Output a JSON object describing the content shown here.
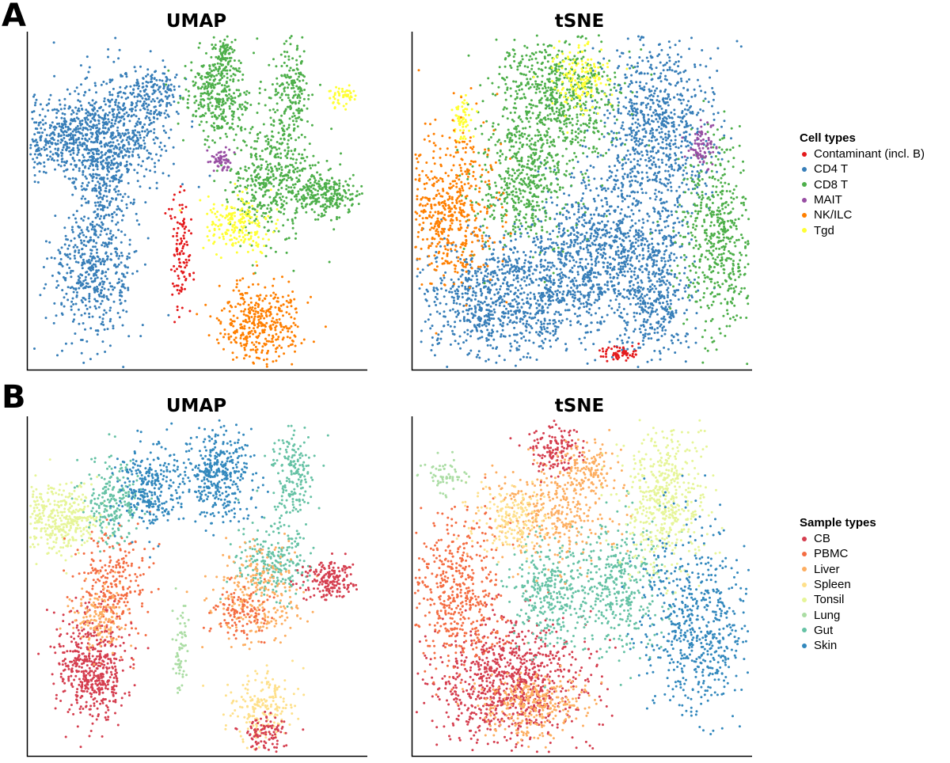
{
  "figure": {
    "panel_a_letter": "A",
    "panel_b_letter": "B"
  },
  "chart_data": [
    {
      "type": "scatter",
      "panel": "A",
      "title": "UMAP",
      "xlabel": "",
      "ylabel": "",
      "color_by": "Cell types",
      "grid": false,
      "clusters": [
        {
          "label": "CD4 T",
          "cx": 0.13,
          "cy": 0.69,
          "sx": 0.09,
          "sy": 0.06,
          "density": 560
        },
        {
          "label": "CD4 T",
          "cx": 0.3,
          "cy": 0.73,
          "sx": 0.07,
          "sy": 0.09,
          "density": 420
        },
        {
          "label": "CD4 T",
          "cx": 0.23,
          "cy": 0.58,
          "sx": 0.04,
          "sy": 0.08,
          "density": 240
        },
        {
          "label": "CD4 T",
          "cx": 0.2,
          "cy": 0.3,
          "sx": 0.06,
          "sy": 0.1,
          "density": 520
        },
        {
          "label": "CD4 T",
          "cx": 0.39,
          "cy": 0.83,
          "sx": 0.03,
          "sy": 0.03,
          "density": 90
        },
        {
          "label": "CD8 T",
          "cx": 0.56,
          "cy": 0.82,
          "sx": 0.05,
          "sy": 0.07,
          "density": 360
        },
        {
          "label": "CD8 T",
          "cx": 0.58,
          "cy": 0.93,
          "sx": 0.015,
          "sy": 0.03,
          "density": 70
        },
        {
          "label": "CD8 T",
          "cx": 0.78,
          "cy": 0.82,
          "sx": 0.03,
          "sy": 0.07,
          "density": 180
        },
        {
          "label": "CD8 T",
          "cx": 0.72,
          "cy": 0.57,
          "sx": 0.07,
          "sy": 0.08,
          "density": 480
        },
        {
          "label": "CD8 T",
          "cx": 0.88,
          "cy": 0.52,
          "sx": 0.05,
          "sy": 0.03,
          "density": 240
        },
        {
          "label": "MAIT",
          "cx": 0.57,
          "cy": 0.62,
          "sx": 0.02,
          "sy": 0.015,
          "density": 60
        },
        {
          "label": "Tgd",
          "cx": 0.62,
          "cy": 0.43,
          "sx": 0.05,
          "sy": 0.04,
          "density": 200
        },
        {
          "label": "Tgd",
          "cx": 0.93,
          "cy": 0.81,
          "sx": 0.02,
          "sy": 0.015,
          "density": 50
        },
        {
          "label": "NK/ILC",
          "cx": 0.68,
          "cy": 0.14,
          "sx": 0.06,
          "sy": 0.06,
          "density": 380
        },
        {
          "label": "Contaminant (incl. B)",
          "cx": 0.45,
          "cy": 0.35,
          "sx": 0.015,
          "sy": 0.08,
          "density": 110
        }
      ]
    },
    {
      "type": "scatter",
      "panel": "A",
      "title": "tSNE",
      "xlabel": "",
      "ylabel": "",
      "color_by": "Cell types",
      "grid": false,
      "clusters": [
        {
          "label": "CD4 T",
          "cx": 0.28,
          "cy": 0.22,
          "sx": 0.13,
          "sy": 0.09,
          "density": 1000
        },
        {
          "label": "CD4 T",
          "cx": 0.55,
          "cy": 0.35,
          "sx": 0.09,
          "sy": 0.13,
          "density": 800
        },
        {
          "label": "CD4 T",
          "cx": 0.72,
          "cy": 0.72,
          "sx": 0.08,
          "sy": 0.14,
          "density": 800
        },
        {
          "label": "CD4 T",
          "cx": 0.72,
          "cy": 0.25,
          "sx": 0.05,
          "sy": 0.12,
          "density": 450
        },
        {
          "label": "CD8 T",
          "cx": 0.42,
          "cy": 0.8,
          "sx": 0.09,
          "sy": 0.1,
          "density": 700
        },
        {
          "label": "CD8 T",
          "cx": 0.33,
          "cy": 0.55,
          "sx": 0.07,
          "sy": 0.09,
          "density": 450
        },
        {
          "label": "CD8 T",
          "cx": 0.9,
          "cy": 0.4,
          "sx": 0.06,
          "sy": 0.15,
          "density": 550
        },
        {
          "label": "Tgd",
          "cx": 0.5,
          "cy": 0.86,
          "sx": 0.04,
          "sy": 0.05,
          "density": 160
        },
        {
          "label": "Tgd",
          "cx": 0.15,
          "cy": 0.74,
          "sx": 0.02,
          "sy": 0.03,
          "density": 60
        },
        {
          "label": "NK/ILC",
          "cx": 0.11,
          "cy": 0.48,
          "sx": 0.07,
          "sy": 0.11,
          "density": 550
        },
        {
          "label": "MAIT",
          "cx": 0.85,
          "cy": 0.66,
          "sx": 0.02,
          "sy": 0.03,
          "density": 80
        },
        {
          "label": "Contaminant (incl. B)",
          "cx": 0.61,
          "cy": 0.05,
          "sx": 0.03,
          "sy": 0.01,
          "density": 60
        }
      ]
    },
    {
      "type": "scatter",
      "panel": "B",
      "title": "UMAP",
      "xlabel": "",
      "ylabel": "",
      "color_by": "Sample types",
      "grid": false,
      "clusters": [
        {
          "label": "Tonsil",
          "cx": 0.1,
          "cy": 0.7,
          "sx": 0.06,
          "sy": 0.05,
          "density": 380
        },
        {
          "label": "Gut",
          "cx": 0.25,
          "cy": 0.75,
          "sx": 0.04,
          "sy": 0.06,
          "density": 220
        },
        {
          "label": "PBMC",
          "cx": 0.25,
          "cy": 0.5,
          "sx": 0.05,
          "sy": 0.08,
          "density": 260
        },
        {
          "label": "CB",
          "cx": 0.19,
          "cy": 0.26,
          "sx": 0.05,
          "sy": 0.08,
          "density": 500
        },
        {
          "label": "Liver",
          "cx": 0.21,
          "cy": 0.4,
          "sx": 0.04,
          "sy": 0.05,
          "density": 140
        },
        {
          "label": "Skin",
          "cx": 0.36,
          "cy": 0.79,
          "sx": 0.05,
          "sy": 0.06,
          "density": 300
        },
        {
          "label": "Skin",
          "cx": 0.56,
          "cy": 0.83,
          "sx": 0.05,
          "sy": 0.07,
          "density": 380
        },
        {
          "label": "Gut",
          "cx": 0.78,
          "cy": 0.83,
          "sx": 0.03,
          "sy": 0.06,
          "density": 180
        },
        {
          "label": "Gut",
          "cx": 0.72,
          "cy": 0.58,
          "sx": 0.06,
          "sy": 0.06,
          "density": 240
        },
        {
          "label": "Liver",
          "cx": 0.68,
          "cy": 0.48,
          "sx": 0.07,
          "sy": 0.07,
          "density": 260
        },
        {
          "label": "CB",
          "cx": 0.89,
          "cy": 0.52,
          "sx": 0.04,
          "sy": 0.03,
          "density": 180
        },
        {
          "label": "PBMC",
          "cx": 0.63,
          "cy": 0.42,
          "sx": 0.04,
          "sy": 0.04,
          "density": 120
        },
        {
          "label": "Spleen",
          "cx": 0.69,
          "cy": 0.14,
          "sx": 0.05,
          "sy": 0.05,
          "density": 200
        },
        {
          "label": "CB",
          "cx": 0.7,
          "cy": 0.07,
          "sx": 0.03,
          "sy": 0.03,
          "density": 100
        },
        {
          "label": "Lung",
          "cx": 0.45,
          "cy": 0.32,
          "sx": 0.012,
          "sy": 0.07,
          "density": 60
        }
      ]
    },
    {
      "type": "scatter",
      "panel": "B",
      "title": "tSNE",
      "xlabel": "",
      "ylabel": "",
      "color_by": "Sample types",
      "grid": false,
      "clusters": [
        {
          "label": "CB",
          "cx": 0.28,
          "cy": 0.22,
          "sx": 0.12,
          "sy": 0.09,
          "density": 900
        },
        {
          "label": "Liver",
          "cx": 0.36,
          "cy": 0.15,
          "sx": 0.08,
          "sy": 0.05,
          "density": 300
        },
        {
          "label": "PBMC",
          "cx": 0.13,
          "cy": 0.48,
          "sx": 0.07,
          "sy": 0.12,
          "density": 500
        },
        {
          "label": "Gut",
          "cx": 0.42,
          "cy": 0.48,
          "sx": 0.06,
          "sy": 0.08,
          "density": 350
        },
        {
          "label": "Gut",
          "cx": 0.62,
          "cy": 0.5,
          "sx": 0.06,
          "sy": 0.1,
          "density": 350
        },
        {
          "label": "Tonsil",
          "cx": 0.74,
          "cy": 0.76,
          "sx": 0.06,
          "sy": 0.11,
          "density": 500
        },
        {
          "label": "Skin",
          "cx": 0.84,
          "cy": 0.38,
          "sx": 0.08,
          "sy": 0.14,
          "density": 600
        },
        {
          "label": "Liver",
          "cx": 0.42,
          "cy": 0.72,
          "sx": 0.08,
          "sy": 0.07,
          "density": 350
        },
        {
          "label": "Spleen",
          "cx": 0.3,
          "cy": 0.7,
          "sx": 0.05,
          "sy": 0.05,
          "density": 180
        },
        {
          "label": "CB",
          "cx": 0.42,
          "cy": 0.9,
          "sx": 0.04,
          "sy": 0.04,
          "density": 140
        },
        {
          "label": "Lung",
          "cx": 0.1,
          "cy": 0.82,
          "sx": 0.03,
          "sy": 0.03,
          "density": 60
        },
        {
          "label": "Liver",
          "cx": 0.52,
          "cy": 0.85,
          "sx": 0.04,
          "sy": 0.04,
          "density": 120
        }
      ]
    }
  ],
  "legends": {
    "cell_types": {
      "title": "Cell types",
      "items": [
        {
          "label": "Contaminant (incl. B)",
          "color": "#e41a1c"
        },
        {
          "label": "CD4 T",
          "color": "#377eb8"
        },
        {
          "label": "CD8 T",
          "color": "#4daf4a"
        },
        {
          "label": "MAIT",
          "color": "#984ea3"
        },
        {
          "label": "NK/ILC",
          "color": "#ff7f00"
        },
        {
          "label": "Tgd",
          "color": "#ffff33"
        }
      ]
    },
    "sample_types": {
      "title": "Sample types",
      "items": [
        {
          "label": "CB",
          "color": "#d53e4f"
        },
        {
          "label": "PBMC",
          "color": "#f46d43"
        },
        {
          "label": "Liver",
          "color": "#fdae61"
        },
        {
          "label": "Spleen",
          "color": "#fee08b"
        },
        {
          "label": "Tonsil",
          "color": "#e6f598"
        },
        {
          "label": "Lung",
          "color": "#abdda4"
        },
        {
          "label": "Gut",
          "color": "#66c2a5"
        },
        {
          "label": "Skin",
          "color": "#3288bd"
        }
      ]
    }
  }
}
